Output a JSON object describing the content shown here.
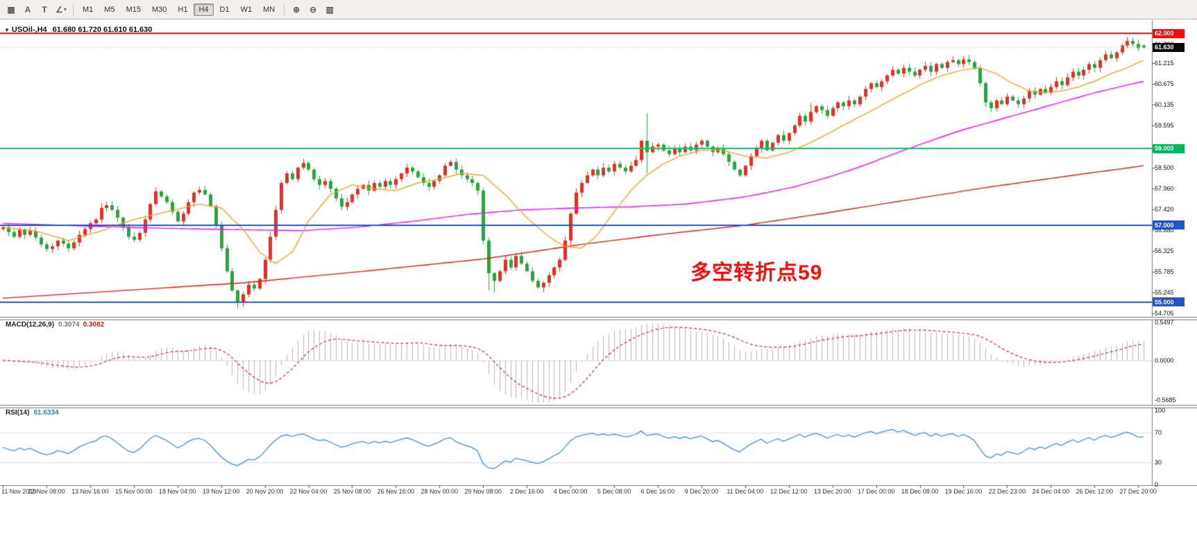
{
  "toolbar": {
    "left_tools": [
      {
        "name": "windows-icon",
        "glyph": "▦"
      },
      {
        "name": "cursor-tool-icon",
        "glyph": "A"
      },
      {
        "name": "text-tool-icon",
        "glyph": "T"
      },
      {
        "name": "shapes-tool-icon",
        "glyph": "∠",
        "dropdown": true
      }
    ],
    "timeframes": [
      {
        "label": "M1",
        "active": false
      },
      {
        "label": "M5",
        "active": false
      },
      {
        "label": "M15",
        "active": false
      },
      {
        "label": "M30",
        "active": false
      },
      {
        "label": "H1",
        "active": false
      },
      {
        "label": "H4",
        "active": true
      },
      {
        "label": "D1",
        "active": false
      },
      {
        "label": "W1",
        "active": false
      },
      {
        "label": "MN",
        "active": false
      }
    ],
    "right_tools": [
      {
        "name": "zoom-in-icon",
        "glyph": "⊕"
      },
      {
        "name": "zoom-out-icon",
        "glyph": "⊖"
      },
      {
        "name": "tile-windows-icon",
        "glyph": "▥"
      }
    ]
  },
  "chart": {
    "title": "USOil-,H4",
    "ohlc_text": "61.680 61.720 61.610 61.630",
    "annotation": {
      "text": "多空转折点59",
      "color": "#fb0d0d"
    },
    "price_axis": {
      "ticks": [
        "61.720",
        "61.215",
        "60.675",
        "60.135",
        "59.595",
        "58.500",
        "57.960",
        "57.420",
        "56.880",
        "56.325",
        "55.785",
        "55.245",
        "54.705"
      ],
      "tags": [
        {
          "value": 62.0,
          "label": "62.000",
          "bg": "#ee0f0f"
        },
        {
          "value": 59.0,
          "label": "59.000",
          "bg": "#00b85c"
        },
        {
          "value": 57.0,
          "label": "57.000",
          "bg": "#1f55cb"
        },
        {
          "value": 55.0,
          "label": "55.000",
          "bg": "#1f55cb"
        },
        {
          "value": 61.63,
          "label": "61.630",
          "bg": "#0a0a0a",
          "current": true
        }
      ]
    },
    "hlines": [
      {
        "value": 62.0,
        "color": "#ee0f0f"
      },
      {
        "value": 59.0,
        "color": "#00d060"
      },
      {
        "value": 57.0,
        "color": "#1f55cb"
      },
      {
        "value": 55.0,
        "color": "#1f55cb"
      }
    ],
    "time_labels": [
      "11 Nov 2019",
      "12 Nov 08:00",
      "13 Nov 16:00",
      "15 Nov 00:00",
      "18 Nov 04:00",
      "19 Nov 12:00",
      "20 Nov 20:00",
      "22 Nov 04:00",
      "25 Nov 08:00",
      "26 Nov 16:00",
      "28 Nov 00:00",
      "29 Nov 08:00",
      "2 Dec 16:00",
      "4 Dec 00:00",
      "5 Dec 08:00",
      "6 Dec 16:00",
      "9 Dec 20:00",
      "11 Dec 04:00",
      "12 Dec 12:00",
      "13 Dec 20:00",
      "17 Dec 00:00",
      "18 Dec 08:00",
      "19 Dec 16:00",
      "22 Dec 23:00",
      "24 Dec 04:00",
      "26 Dec 12:00",
      "27 Dec 20:00"
    ]
  },
  "chart_data": {
    "type": "candlestick",
    "symbol": "USOil-",
    "timeframe": "H4",
    "last_ohlc": {
      "open": 61.68,
      "high": 61.72,
      "low": 61.61,
      "close": 61.63
    },
    "price_range_visible": [
      54.705,
      62.0
    ],
    "closes": [
      56.95,
      56.82,
      56.7,
      56.88,
      56.75,
      56.85,
      56.68,
      56.5,
      56.38,
      56.45,
      56.6,
      56.52,
      56.4,
      56.55,
      56.75,
      56.9,
      57.05,
      57.15,
      57.45,
      57.52,
      57.4,
      57.2,
      56.95,
      56.7,
      56.62,
      56.8,
      57.15,
      57.55,
      57.88,
      57.75,
      57.6,
      57.35,
      57.1,
      57.3,
      57.6,
      57.85,
      57.92,
      57.8,
      57.5,
      57.0,
      56.4,
      55.8,
      55.3,
      54.98,
      55.2,
      55.45,
      55.35,
      55.6,
      56.1,
      56.7,
      57.4,
      58.1,
      58.35,
      58.2,
      58.5,
      58.62,
      58.45,
      58.2,
      58.05,
      58.15,
      57.95,
      57.7,
      57.48,
      57.6,
      57.8,
      57.95,
      58.05,
      57.9,
      58.1,
      58.0,
      58.15,
      58.05,
      58.2,
      58.35,
      58.5,
      58.4,
      58.25,
      58.1,
      58.0,
      58.15,
      58.3,
      58.55,
      58.65,
      58.45,
      58.3,
      58.2,
      58.1,
      57.9,
      56.6,
      55.75,
      55.55,
      55.8,
      56.1,
      55.9,
      56.2,
      56.0,
      55.8,
      55.55,
      55.38,
      55.5,
      55.7,
      55.9,
      56.1,
      56.6,
      57.3,
      57.85,
      58.1,
      58.3,
      58.45,
      58.3,
      58.5,
      58.4,
      58.6,
      58.5,
      58.4,
      58.55,
      58.7,
      59.2,
      58.9,
      59.05,
      59.1,
      58.95,
      58.85,
      59.0,
      58.9,
      59.05,
      58.95,
      59.1,
      59.2,
      59.05,
      58.9,
      59.0,
      58.85,
      58.65,
      58.45,
      58.3,
      58.55,
      58.8,
      59.0,
      59.2,
      58.95,
      59.15,
      59.35,
      59.2,
      59.4,
      59.6,
      59.85,
      59.7,
      59.95,
      60.1,
      60.0,
      59.85,
      60.05,
      60.2,
      60.1,
      60.25,
      60.15,
      60.35,
      60.55,
      60.7,
      60.6,
      60.75,
      60.9,
      61.05,
      60.95,
      61.1,
      61.0,
      60.9,
      61.05,
      61.15,
      61.0,
      61.2,
      61.1,
      61.25,
      61.3,
      61.2,
      61.32,
      61.25,
      61.1,
      60.7,
      60.2,
      60.05,
      60.25,
      60.15,
      60.35,
      60.25,
      60.15,
      60.3,
      60.5,
      60.4,
      60.55,
      60.45,
      60.6,
      60.75,
      60.65,
      60.85,
      61.0,
      60.9,
      61.05,
      61.2,
      61.1,
      61.3,
      61.45,
      61.35,
      61.5,
      61.68,
      61.8,
      61.72,
      61.61,
      61.63
    ],
    "overrides": {
      "43": {
        "low": 54.83
      },
      "89": {
        "low": 55.3
      },
      "90": {
        "low": 55.25
      },
      "118": {
        "high": 59.92,
        "low": 58.35
      },
      "148": {
        "high": 60.18
      },
      "176": {
        "high": 61.4
      },
      "206": {
        "high": 61.9
      },
      "209": {
        "open": 61.68,
        "high": 61.72,
        "low": 61.61,
        "close": 61.63
      }
    },
    "ma_lines": [
      {
        "name": "ma-fast",
        "color": "#efa32a",
        "anchors": [
          [
            0,
            56.95
          ],
          [
            6,
            56.85
          ],
          [
            12,
            56.6
          ],
          [
            18,
            56.85
          ],
          [
            24,
            57.15
          ],
          [
            30,
            57.35
          ],
          [
            36,
            57.55
          ],
          [
            40,
            57.45
          ],
          [
            44,
            56.9
          ],
          [
            47,
            56.3
          ],
          [
            50,
            56.0
          ],
          [
            53,
            56.3
          ],
          [
            56,
            57.1
          ],
          [
            60,
            57.8
          ],
          [
            64,
            58.05
          ],
          [
            68,
            57.95
          ],
          [
            72,
            57.9
          ],
          [
            76,
            58.1
          ],
          [
            80,
            58.2
          ],
          [
            84,
            58.35
          ],
          [
            88,
            58.3
          ],
          [
            92,
            57.8
          ],
          [
            96,
            57.2
          ],
          [
            100,
            56.7
          ],
          [
            103,
            56.45
          ],
          [
            106,
            56.4
          ],
          [
            109,
            56.75
          ],
          [
            112,
            57.35
          ],
          [
            115,
            57.9
          ],
          [
            118,
            58.3
          ],
          [
            121,
            58.6
          ],
          [
            124,
            58.8
          ],
          [
            128,
            58.95
          ],
          [
            132,
            58.95
          ],
          [
            136,
            58.8
          ],
          [
            140,
            58.75
          ],
          [
            144,
            58.9
          ],
          [
            148,
            59.15
          ],
          [
            152,
            59.45
          ],
          [
            156,
            59.75
          ],
          [
            160,
            60.05
          ],
          [
            164,
            60.35
          ],
          [
            168,
            60.65
          ],
          [
            172,
            60.9
          ],
          [
            176,
            61.05
          ],
          [
            179,
            61.1
          ],
          [
            182,
            60.95
          ],
          [
            185,
            60.7
          ],
          [
            188,
            60.5
          ],
          [
            191,
            60.45
          ],
          [
            194,
            60.5
          ],
          [
            197,
            60.6
          ],
          [
            200,
            60.75
          ],
          [
            203,
            60.95
          ],
          [
            206,
            61.1
          ],
          [
            209,
            61.3
          ]
        ]
      },
      {
        "name": "ma-medium",
        "color": "#ff00ff",
        "anchors": [
          [
            0,
            57.05
          ],
          [
            15,
            56.98
          ],
          [
            30,
            56.92
          ],
          [
            45,
            56.88
          ],
          [
            55,
            56.86
          ],
          [
            65,
            56.95
          ],
          [
            75,
            57.1
          ],
          [
            85,
            57.28
          ],
          [
            95,
            57.4
          ],
          [
            105,
            57.45
          ],
          [
            115,
            57.48
          ],
          [
            125,
            57.55
          ],
          [
            135,
            57.72
          ],
          [
            140,
            57.85
          ],
          [
            145,
            58.0
          ],
          [
            150,
            58.2
          ],
          [
            155,
            58.42
          ],
          [
            160,
            58.68
          ],
          [
            165,
            58.95
          ],
          [
            170,
            59.2
          ],
          [
            175,
            59.45
          ],
          [
            180,
            59.65
          ],
          [
            185,
            59.85
          ],
          [
            190,
            60.05
          ],
          [
            195,
            60.25
          ],
          [
            200,
            60.45
          ],
          [
            205,
            60.62
          ],
          [
            209,
            60.75
          ]
        ]
      },
      {
        "name": "ma-slow",
        "color": "#e8150d",
        "anchors": [
          [
            0,
            55.1
          ],
          [
            20,
            55.28
          ],
          [
            44,
            55.5
          ],
          [
            66,
            55.8
          ],
          [
            88,
            56.12
          ],
          [
            106,
            56.5
          ],
          [
            120,
            56.75
          ],
          [
            136,
            57.0
          ],
          [
            150,
            57.3
          ],
          [
            164,
            57.62
          ],
          [
            180,
            57.98
          ],
          [
            195,
            58.28
          ],
          [
            209,
            58.55
          ]
        ]
      }
    ],
    "macd": {
      "label": "MACD(12,26,9)",
      "main_value": "0.3074",
      "signal_value": "0.3082",
      "params": [
        12,
        26,
        9
      ],
      "axis": [
        "0.5497",
        "0.0000",
        "-0.5685"
      ]
    },
    "rsi": {
      "label": "RSI(14)",
      "value_text": "61.6334",
      "period": 14,
      "axis": [
        "100",
        "70",
        "30",
        "0"
      ],
      "levels": [
        70,
        30
      ]
    }
  },
  "colors": {
    "candle_up": "#e03127",
    "candle_down": "#2ca241",
    "macd_hist": "#b4b4b4",
    "macd_signal": "#e02020",
    "rsi_line": "#3e8ede",
    "bid_line": "#c9c9c9"
  }
}
